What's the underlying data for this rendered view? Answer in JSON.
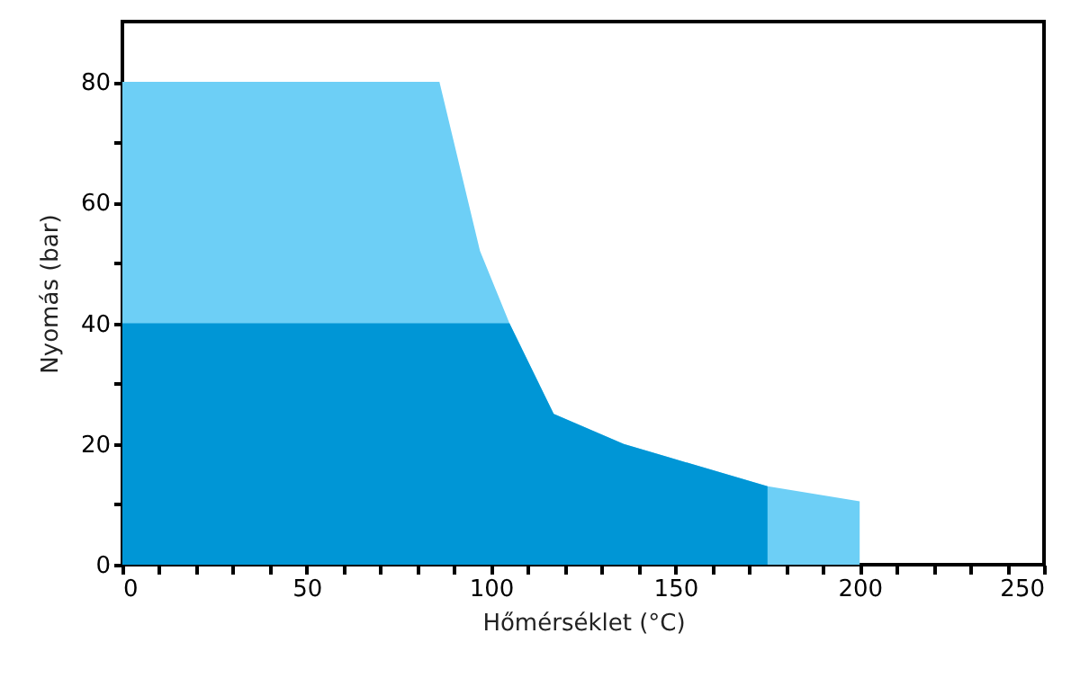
{
  "chart_data": {
    "type": "area",
    "xlabel": "Hőmérséklet (°C)",
    "ylabel": "Nyomás (bar)",
    "xlim": [
      0,
      250
    ],
    "ylim": [
      0,
      90
    ],
    "xticks": [
      0,
      {
        "value": 10,
        "label": null
      },
      {
        "value": 20,
        "label": null
      },
      {
        "value": 30,
        "label": null
      },
      {
        "value": 40,
        "label": null
      },
      50,
      {
        "value": 60,
        "label": null
      },
      {
        "value": 70,
        "label": null
      },
      {
        "value": 80,
        "label": null
      },
      {
        "value": 90,
        "label": null
      },
      100,
      {
        "value": 110,
        "label": null
      },
      {
        "value": 120,
        "label": null
      },
      {
        "value": 130,
        "label": null
      },
      {
        "value": 140,
        "label": null
      },
      150,
      {
        "value": 160,
        "label": null
      },
      {
        "value": 170,
        "label": null
      },
      {
        "value": 180,
        "label": null
      },
      {
        "value": 190,
        "label": null
      },
      200,
      {
        "value": 210,
        "label": null
      },
      {
        "value": 220,
        "label": null
      },
      {
        "value": 230,
        "label": null
      },
      {
        "value": 240,
        "label": null
      },
      250
    ],
    "yticks": [
      0,
      {
        "value": 10,
        "label": null
      },
      20,
      {
        "value": 30,
        "label": null
      },
      40,
      {
        "value": 50,
        "label": null
      },
      60,
      {
        "value": 70,
        "label": null
      },
      80
    ],
    "grid": false,
    "series": [
      {
        "color": "#6dcff6",
        "x": [
          0,
          86,
          97,
          105,
          117,
          136,
          175,
          200
        ],
        "values": [
          80,
          80,
          52,
          40,
          25,
          20,
          13,
          10.5
        ]
      },
      {
        "color": "#0096d6",
        "x": [
          0,
          105,
          117,
          136,
          175
        ],
        "values": [
          40,
          40,
          25,
          20,
          13
        ]
      }
    ]
  }
}
